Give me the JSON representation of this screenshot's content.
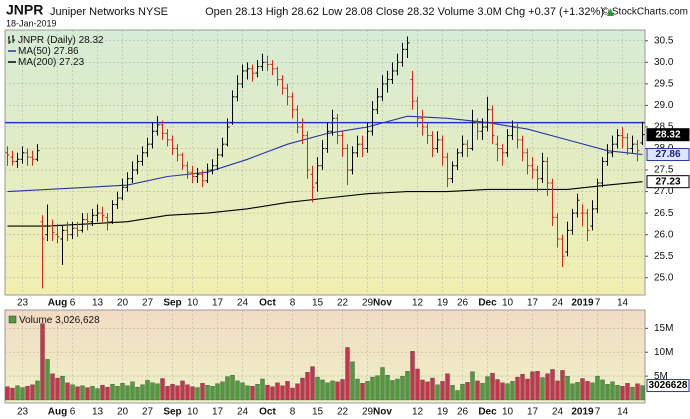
{
  "header": {
    "symbol": "JNPR",
    "company": "Juniper Networks",
    "exchange": "NYSE",
    "date": "18-Jan-2019",
    "labels": [
      "Open",
      "High",
      "Low",
      "Close",
      "Volume",
      "Chg"
    ],
    "volume": "3.0M",
    "change": "+0.37 (+1.32%)",
    "credit": "© StockCharts.com"
  },
  "chart_data": [
    {
      "type": "ohlc",
      "legend_title": "JNPR (Daily)",
      "categories": [
        null,
        null,
        null,
        "23",
        null,
        null,
        null,
        null,
        null,
        null,
        "Aug",
        null,
        null,
        "6",
        null,
        null,
        null,
        null,
        "13",
        null,
        null,
        null,
        null,
        "20",
        null,
        null,
        null,
        null,
        "27",
        null,
        null,
        null,
        null,
        "Sep",
        null,
        null,
        null,
        "10",
        null,
        null,
        null,
        null,
        "17",
        null,
        null,
        null,
        null,
        "24",
        null,
        null,
        null,
        null,
        "Oct",
        null,
        null,
        null,
        null,
        "8",
        null,
        null,
        null,
        null,
        "15",
        null,
        null,
        null,
        null,
        "22",
        null,
        null,
        null,
        null,
        "29",
        null,
        null,
        "Nov",
        null,
        null,
        null,
        null,
        null,
        null,
        "12",
        null,
        null,
        null,
        null,
        "19",
        null,
        null,
        null,
        "26",
        null,
        null,
        null,
        null,
        "Dec",
        null,
        null,
        null,
        "10",
        null,
        null,
        null,
        null,
        "17",
        null,
        null,
        null,
        null,
        "24",
        null,
        null,
        null,
        null,
        "2019",
        null,
        null,
        "7",
        null,
        null,
        null,
        null,
        "14",
        null,
        null,
        null,
        null
      ],
      "open": [
        27.9,
        27.8,
        27.7,
        27.75,
        27.9,
        27.8,
        27.75,
        26.3,
        26.0,
        26.2,
        26.0,
        25.9,
        26.1,
        26.0,
        26.15,
        26.1,
        26.35,
        26.3,
        26.45,
        26.5,
        26.4,
        26.3,
        26.7,
        26.85,
        27.1,
        27.3,
        27.5,
        27.7,
        27.9,
        28.1,
        28.4,
        28.55,
        28.35,
        28.2,
        28.0,
        27.85,
        27.6,
        27.45,
        27.35,
        27.4,
        27.25,
        27.5,
        27.6,
        27.85,
        28.1,
        28.6,
        29.2,
        29.5,
        29.8,
        29.85,
        29.75,
        29.9,
        30.0,
        29.95,
        29.85,
        29.6,
        29.4,
        29.2,
        28.9,
        28.5,
        28.3,
        27.4,
        27.2,
        27.6,
        28.0,
        28.4,
        28.7,
        28.3,
        28.0,
        27.5,
        27.9,
        28.1,
        28.0,
        28.4,
        28.9,
        29.2,
        29.5,
        29.6,
        29.8,
        30.0,
        30.3,
        29.6,
        29.1,
        28.7,
        28.5,
        28.3,
        28.0,
        28.2,
        27.8,
        27.3,
        27.6,
        27.9,
        28.1,
        28.0,
        28.6,
        28.4,
        28.5,
        28.9,
        28.1,
        28.0,
        27.9,
        28.3,
        28.5,
        28.2,
        27.9,
        27.6,
        27.5,
        27.3,
        27.7,
        27.2,
        26.4,
        25.9,
        25.6,
        26.1,
        26.5,
        26.5,
        26.5,
        26.2,
        26.6,
        27.2,
        27.7,
        27.9,
        28.1,
        28.3,
        28.25,
        28.0,
        28.1,
        28.13
      ],
      "high": [
        28.05,
        27.95,
        27.9,
        28.05,
        28.0,
        27.95,
        28.1,
        26.45,
        26.7,
        26.35,
        26.25,
        26.2,
        26.3,
        26.3,
        26.3,
        26.5,
        26.5,
        26.6,
        26.7,
        26.65,
        26.5,
        26.8,
        27.0,
        27.3,
        27.45,
        27.7,
        27.85,
        28.05,
        28.25,
        28.6,
        28.75,
        28.65,
        28.45,
        28.3,
        28.1,
        27.9,
        27.7,
        27.6,
        27.55,
        27.5,
        27.65,
        27.75,
        28.0,
        28.25,
        28.7,
        29.35,
        29.7,
        29.95,
        30.0,
        29.95,
        30.05,
        30.2,
        30.15,
        30.05,
        29.9,
        29.7,
        29.5,
        29.3,
        29.0,
        28.7,
        28.4,
        27.6,
        27.8,
        28.2,
        28.6,
        28.9,
        28.8,
        28.4,
        28.1,
        28.05,
        28.3,
        28.3,
        28.6,
        29.1,
        29.4,
        29.7,
        29.8,
        30.0,
        30.2,
        30.45,
        30.6,
        29.8,
        29.2,
        28.9,
        28.6,
        28.4,
        28.4,
        28.3,
        27.9,
        27.7,
        28.0,
        28.3,
        28.2,
        28.9,
        28.7,
        28.7,
        29.2,
        29.0,
        28.3,
        28.1,
        28.45,
        28.65,
        28.6,
        28.3,
        28.0,
        27.8,
        27.6,
        27.9,
        27.8,
        27.3,
        26.5,
        26.0,
        26.3,
        26.6,
        26.95,
        26.7,
        26.6,
        26.8,
        27.3,
        27.8,
        28.1,
        28.3,
        28.45,
        28.5,
        28.35,
        28.3,
        28.2,
        28.62
      ],
      "low": [
        27.6,
        27.6,
        27.55,
        27.65,
        27.6,
        27.6,
        27.7,
        24.75,
        25.85,
        25.85,
        25.8,
        25.3,
        25.85,
        25.9,
        25.95,
        26.05,
        26.1,
        26.2,
        26.3,
        26.3,
        26.1,
        26.25,
        26.6,
        26.8,
        27.0,
        27.2,
        27.4,
        27.6,
        27.8,
        28.0,
        28.3,
        28.2,
        28.05,
        27.85,
        27.7,
        27.5,
        27.3,
        27.2,
        27.2,
        27.1,
        27.2,
        27.4,
        27.5,
        27.8,
        28.05,
        28.55,
        29.1,
        29.4,
        29.6,
        29.55,
        29.65,
        29.8,
        29.8,
        29.7,
        29.45,
        29.25,
        29.0,
        28.7,
        28.35,
        28.1,
        27.3,
        26.75,
        27.0,
        27.5,
        27.9,
        28.3,
        28.1,
        27.8,
        27.15,
        27.4,
        27.8,
        27.8,
        27.9,
        28.3,
        28.8,
        29.1,
        29.3,
        29.5,
        29.7,
        29.9,
        30.1,
        28.9,
        28.5,
        28.3,
        28.1,
        27.8,
        27.9,
        27.6,
        27.1,
        27.2,
        27.5,
        27.8,
        27.8,
        27.95,
        28.2,
        28.2,
        28.4,
        28.1,
        27.7,
        27.6,
        27.8,
        28.2,
        28.0,
        27.7,
        27.4,
        27.3,
        27.0,
        27.2,
        26.9,
        26.2,
        25.7,
        25.25,
        25.5,
        26.0,
        26.4,
        26.2,
        25.85,
        26.1,
        26.5,
        27.1,
        27.6,
        27.8,
        28.0,
        28.0,
        27.85,
        27.9,
        27.7,
        28.08
      ],
      "close": [
        27.85,
        27.7,
        27.75,
        27.9,
        27.8,
        27.75,
        27.95,
        25.9,
        26.2,
        26.05,
        25.95,
        26.1,
        26.0,
        26.15,
        26.1,
        26.35,
        26.3,
        26.45,
        26.5,
        26.45,
        26.3,
        26.7,
        26.85,
        27.1,
        27.3,
        27.5,
        27.7,
        27.9,
        28.1,
        28.4,
        28.55,
        28.35,
        28.2,
        28.0,
        27.85,
        27.6,
        27.45,
        27.35,
        27.4,
        27.25,
        27.5,
        27.6,
        27.85,
        28.1,
        28.5,
        29.2,
        29.5,
        29.8,
        29.85,
        29.75,
        29.9,
        30.0,
        29.95,
        29.85,
        29.6,
        29.4,
        29.2,
        28.9,
        28.5,
        28.3,
        27.5,
        27.1,
        27.6,
        28.0,
        28.4,
        28.7,
        28.3,
        28.0,
        27.5,
        27.9,
        28.1,
        28.0,
        28.4,
        28.9,
        29.2,
        29.5,
        29.6,
        29.8,
        30.0,
        30.3,
        30.45,
        29.1,
        28.7,
        28.5,
        28.3,
        28.0,
        28.2,
        27.8,
        27.3,
        27.6,
        27.9,
        28.1,
        28.0,
        28.6,
        28.4,
        28.5,
        28.9,
        28.3,
        28.0,
        27.9,
        28.3,
        28.5,
        28.2,
        27.9,
        27.6,
        27.5,
        27.3,
        27.7,
        27.2,
        26.4,
        25.9,
        25.5,
        26.1,
        26.5,
        26.8,
        26.5,
        26.1,
        26.6,
        27.2,
        27.7,
        27.9,
        28.1,
        28.3,
        28.25,
        28.0,
        28.1,
        27.95,
        28.32
      ],
      "up_color": "#000000",
      "down_color": "#d42a1e",
      "series": [
        {
          "name": "MA(50)",
          "color": "#2a35a8",
          "x": [
            0,
            8,
            16,
            24,
            32,
            40,
            48,
            56,
            64,
            72,
            80,
            88,
            96,
            104,
            112,
            120,
            127
          ],
          "values": [
            27.0,
            27.05,
            27.1,
            27.15,
            27.35,
            27.45,
            27.75,
            28.1,
            28.35,
            28.5,
            28.75,
            28.7,
            28.6,
            28.45,
            28.2,
            27.95,
            27.86
          ]
        },
        {
          "name": "MA(200)",
          "color": "#000000",
          "x": [
            0,
            8,
            16,
            24,
            32,
            40,
            48,
            56,
            64,
            72,
            80,
            88,
            96,
            104,
            112,
            120,
            127
          ],
          "values": [
            26.2,
            26.2,
            26.25,
            26.3,
            26.45,
            26.5,
            26.6,
            26.75,
            26.85,
            26.95,
            27.0,
            27.0,
            27.05,
            27.05,
            27.05,
            27.15,
            27.23
          ]
        }
      ],
      "lines": [
        {
          "value": 28.6,
          "color": "#1c35e0"
        }
      ],
      "ylim": [
        24.6,
        30.75
      ],
      "yticks": [
        {
          "value": 25,
          "label": "25.0"
        },
        25.5,
        {
          "value": 26,
          "label": "26.0"
        },
        26.5,
        {
          "value": 27,
          "label": "27.0"
        },
        27.5,
        {
          "value": 28,
          "label": "28.0"
        },
        28.5,
        {
          "value": 29,
          "label": "29.0"
        },
        29.5,
        {
          "value": 30,
          "label": "30.0"
        },
        30.5
      ],
      "grid": true
    },
    {
      "type": "volume",
      "title": "Volume",
      "values": [
        2.8,
        2.5,
        3.0,
        2.6,
        2.9,
        3.2,
        4.0,
        16.0,
        8.5,
        5.5,
        4.6,
        5.0,
        3.6,
        3.2,
        2.8,
        3.0,
        2.6,
        2.9,
        2.4,
        3.1,
        2.7,
        3.3,
        2.9,
        3.5,
        3.0,
        3.8,
        2.7,
        3.2,
        4.1,
        3.6,
        3.4,
        4.5,
        2.9,
        3.3,
        3.0,
        4.0,
        3.2,
        2.8,
        2.6,
        3.5,
        3.1,
        2.9,
        3.4,
        3.8,
        4.9,
        5.2,
        4.0,
        3.6,
        3.0,
        2.9,
        3.3,
        4.4,
        3.1,
        2.8,
        3.6,
        3.0,
        3.9,
        2.5,
        3.4,
        4.6,
        5.8,
        7.0,
        4.8,
        4.2,
        3.6,
        4.0,
        3.8,
        4.3,
        11.0,
        8.0,
        4.4,
        3.5,
        3.9,
        4.8,
        5.1,
        6.8,
        5.2,
        4.1,
        4.4,
        5.0,
        6.0,
        10.2,
        6.5,
        4.2,
        3.8,
        4.6,
        3.2,
        3.9,
        5.5,
        3.1,
        2.0,
        3.3,
        3.7,
        5.9,
        4.0,
        3.5,
        4.9,
        5.6,
        4.3,
        3.6,
        3.4,
        3.9,
        4.8,
        5.4,
        4.4,
        5.9,
        6.0,
        4.7,
        5.5,
        6.4,
        4.0,
        6.2,
        5.0,
        3.4,
        3.7,
        4.5,
        3.9,
        3.6,
        5.0,
        4.2,
        3.3,
        3.8,
        3.1,
        2.9,
        3.5,
        2.7,
        3.4,
        3.026628
      ],
      "last_label": "3,026,628",
      "axis_label": "3026628",
      "up_color": "#4e9a3c",
      "down_color": "#c8344c",
      "ylim": [
        0,
        18
      ],
      "yticks": [
        {
          "value": 5,
          "label": "5M"
        },
        {
          "value": 10,
          "label": "10M"
        },
        {
          "value": 15,
          "label": "15M"
        }
      ],
      "grid": true
    }
  ]
}
